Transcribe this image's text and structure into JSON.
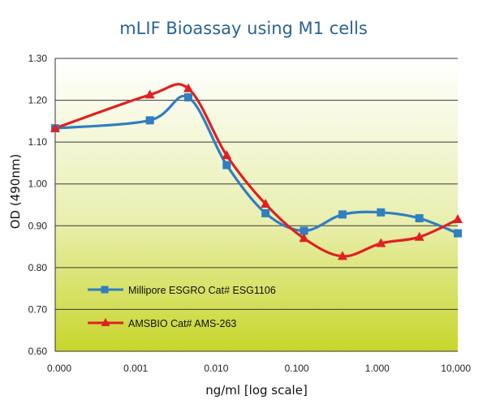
{
  "chart_data": {
    "type": "line",
    "title": "mLIF Bioassay using M1 cells",
    "xlabel": "ng/ml [log scale]",
    "ylabel": "OD (490nm)",
    "x_scale": "log",
    "x_tick_labels": [
      "0.000",
      "0.001",
      "0.010",
      "0.100",
      "1.000",
      "10,000"
    ],
    "y_tick_labels": [
      "0.60",
      "0.70",
      "0.80",
      "0.90",
      "1.00",
      "1.10",
      "1.20",
      "1.30"
    ],
    "ylim": [
      0.6,
      1.3
    ],
    "grid": "horizontal",
    "legend_position": "bottom-left",
    "background": [
      "#ffffff",
      "#c8d62a"
    ],
    "series": [
      {
        "name": "Millipore ESGRO Cat# ESG1106",
        "color": "#2f7fc1",
        "marker": "square",
        "x": [
          0.0001,
          0.0015,
          0.0045,
          0.0135,
          0.041,
          0.123,
          0.37,
          1.11,
          3.33,
          10.0
        ],
        "y": [
          1.133,
          1.152,
          1.207,
          1.045,
          0.93,
          0.888,
          0.927,
          0.932,
          0.918,
          0.882
        ]
      },
      {
        "name": "AMSBIO Cat# AMS-263",
        "color": "#e02020",
        "marker": "triangle",
        "x": [
          0.0001,
          0.0015,
          0.0045,
          0.0135,
          0.041,
          0.123,
          0.37,
          1.11,
          3.33,
          10.0
        ],
        "y": [
          1.133,
          1.213,
          1.228,
          1.068,
          0.952,
          0.87,
          0.827,
          0.858,
          0.873,
          0.915
        ]
      }
    ]
  }
}
